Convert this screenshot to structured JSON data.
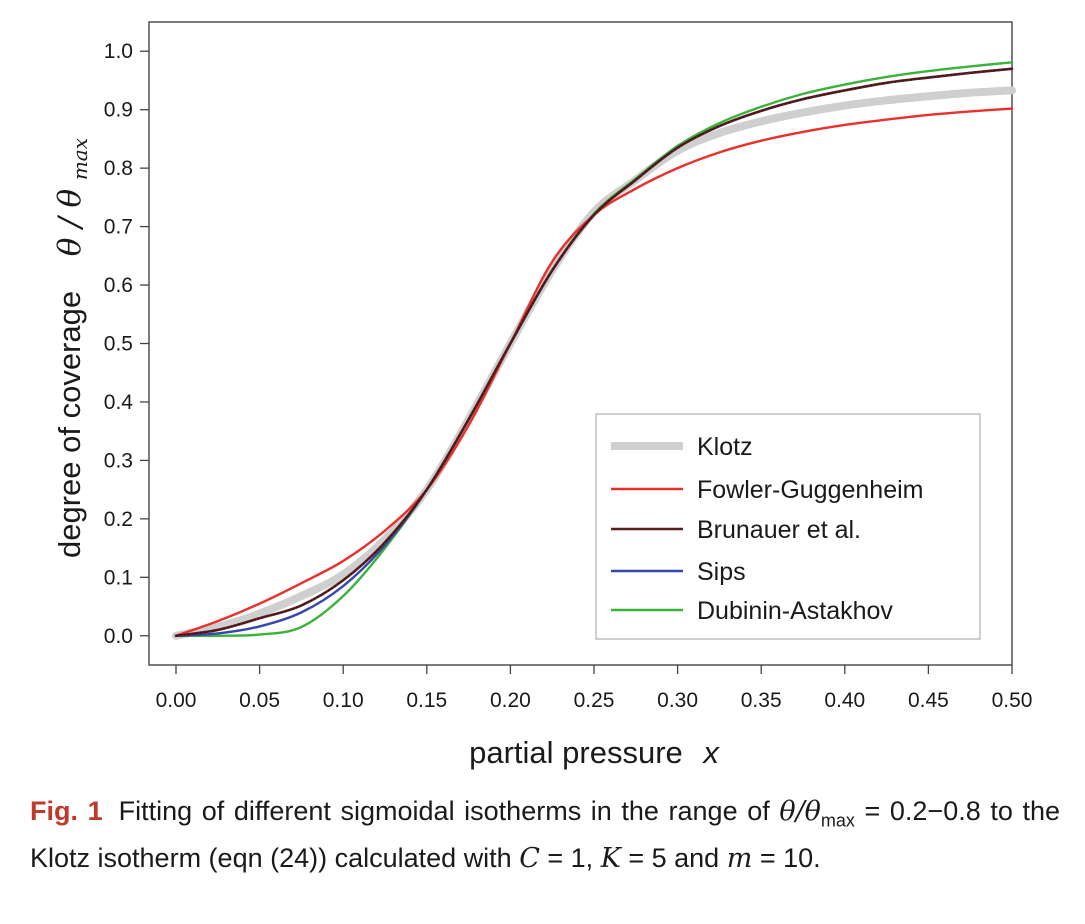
{
  "chart_data": {
    "type": "line",
    "xlabel_text": "partial pressure",
    "xlabel_var": "x",
    "ylabel_text": "degree of coverage",
    "ylabel_var": "θ / θ",
    "ylabel_sub": "max",
    "xlim": [
      0,
      0.5
    ],
    "ylim": [
      -0.05,
      1.05
    ],
    "xticks": [
      "0.00",
      "0.05",
      "0.10",
      "0.15",
      "0.20",
      "0.25",
      "0.30",
      "0.35",
      "0.40",
      "0.45",
      "0.50"
    ],
    "yticks": [
      "0.0",
      "0.1",
      "0.2",
      "0.3",
      "0.4",
      "0.5",
      "0.6",
      "0.7",
      "0.8",
      "0.9",
      "1.0"
    ],
    "grid": false,
    "legend_position": "lower-right",
    "series": [
      {
        "name": "Klotz",
        "color": "#cfcfcf",
        "x": [
          0,
          0.025,
          0.05,
          0.075,
          0.1,
          0.125,
          0.15,
          0.175,
          0.2,
          0.225,
          0.25,
          0.275,
          0.3,
          0.325,
          0.35,
          0.375,
          0.4,
          0.425,
          0.45,
          0.475,
          0.5
        ],
        "y": [
          0,
          0.015,
          0.038,
          0.068,
          0.105,
          0.165,
          0.25,
          0.37,
          0.5,
          0.625,
          0.725,
          0.78,
          0.83,
          0.86,
          0.88,
          0.895,
          0.907,
          0.916,
          0.923,
          0.929,
          0.933
        ]
      },
      {
        "name": "Fowler-Guggenheim",
        "color": "#e8302c",
        "x": [
          0,
          0.025,
          0.05,
          0.075,
          0.1,
          0.125,
          0.15,
          0.175,
          0.2,
          0.225,
          0.25,
          0.275,
          0.3,
          0.325,
          0.35,
          0.375,
          0.4,
          0.425,
          0.45,
          0.475,
          0.5
        ],
        "y": [
          0,
          0.025,
          0.055,
          0.09,
          0.128,
          0.18,
          0.25,
          0.36,
          0.5,
          0.64,
          0.72,
          0.765,
          0.8,
          0.827,
          0.847,
          0.862,
          0.874,
          0.883,
          0.891,
          0.897,
          0.902
        ]
      },
      {
        "name": "Brunauer et al.",
        "color": "#5a1e1e",
        "x": [
          0,
          0.025,
          0.05,
          0.075,
          0.1,
          0.125,
          0.15,
          0.175,
          0.2,
          0.225,
          0.25,
          0.275,
          0.3,
          0.325,
          0.35,
          0.375,
          0.4,
          0.425,
          0.45,
          0.475,
          0.5
        ],
        "y": [
          0,
          0.01,
          0.03,
          0.052,
          0.095,
          0.16,
          0.25,
          0.37,
          0.5,
          0.625,
          0.72,
          0.78,
          0.835,
          0.872,
          0.898,
          0.918,
          0.933,
          0.946,
          0.955,
          0.963,
          0.97
        ]
      },
      {
        "name": "Sips",
        "color": "#3448b0",
        "x": [
          0,
          0.025,
          0.05,
          0.075,
          0.1,
          0.125,
          0.15,
          0.175,
          0.2,
          0.225,
          0.25,
          0.275,
          0.3,
          0.325,
          0.35,
          0.375,
          0.4,
          0.425,
          0.45,
          0.475,
          0.5
        ],
        "y": [
          0,
          0.004,
          0.016,
          0.04,
          0.085,
          0.155,
          0.25,
          0.37,
          0.5,
          0.625,
          0.72,
          0.78,
          0.835,
          0.872,
          0.898,
          0.918,
          0.933,
          0.946,
          0.955,
          0.963,
          0.97
        ]
      },
      {
        "name": "Dubinin-Astakhov",
        "color": "#3bb33b",
        "x": [
          0,
          0.025,
          0.05,
          0.075,
          0.1,
          0.125,
          0.15,
          0.175,
          0.2,
          0.225,
          0.25,
          0.275,
          0.3,
          0.325,
          0.35,
          0.375,
          0.4,
          0.425,
          0.45,
          0.475,
          0.5
        ],
        "y": [
          0,
          0,
          0.002,
          0.015,
          0.068,
          0.15,
          0.25,
          0.37,
          0.5,
          0.625,
          0.722,
          0.782,
          0.838,
          0.877,
          0.905,
          0.927,
          0.943,
          0.956,
          0.966,
          0.974,
          0.981
        ]
      }
    ]
  },
  "caption": {
    "label": "Fig. 1",
    "part1": "Fitting of different sigmoidal isotherms in the range of ",
    "math1": "θ/θ",
    "math1_sub": "max",
    "part2": " = 0.2−0.8 to the Klotz isotherm (eqn (24)) calculated with ",
    "var_c": "C",
    "part3": " = 1, ",
    "var_k": "K",
    "part4": " = 5 and ",
    "var_m": "m",
    "part5": " = 10."
  }
}
